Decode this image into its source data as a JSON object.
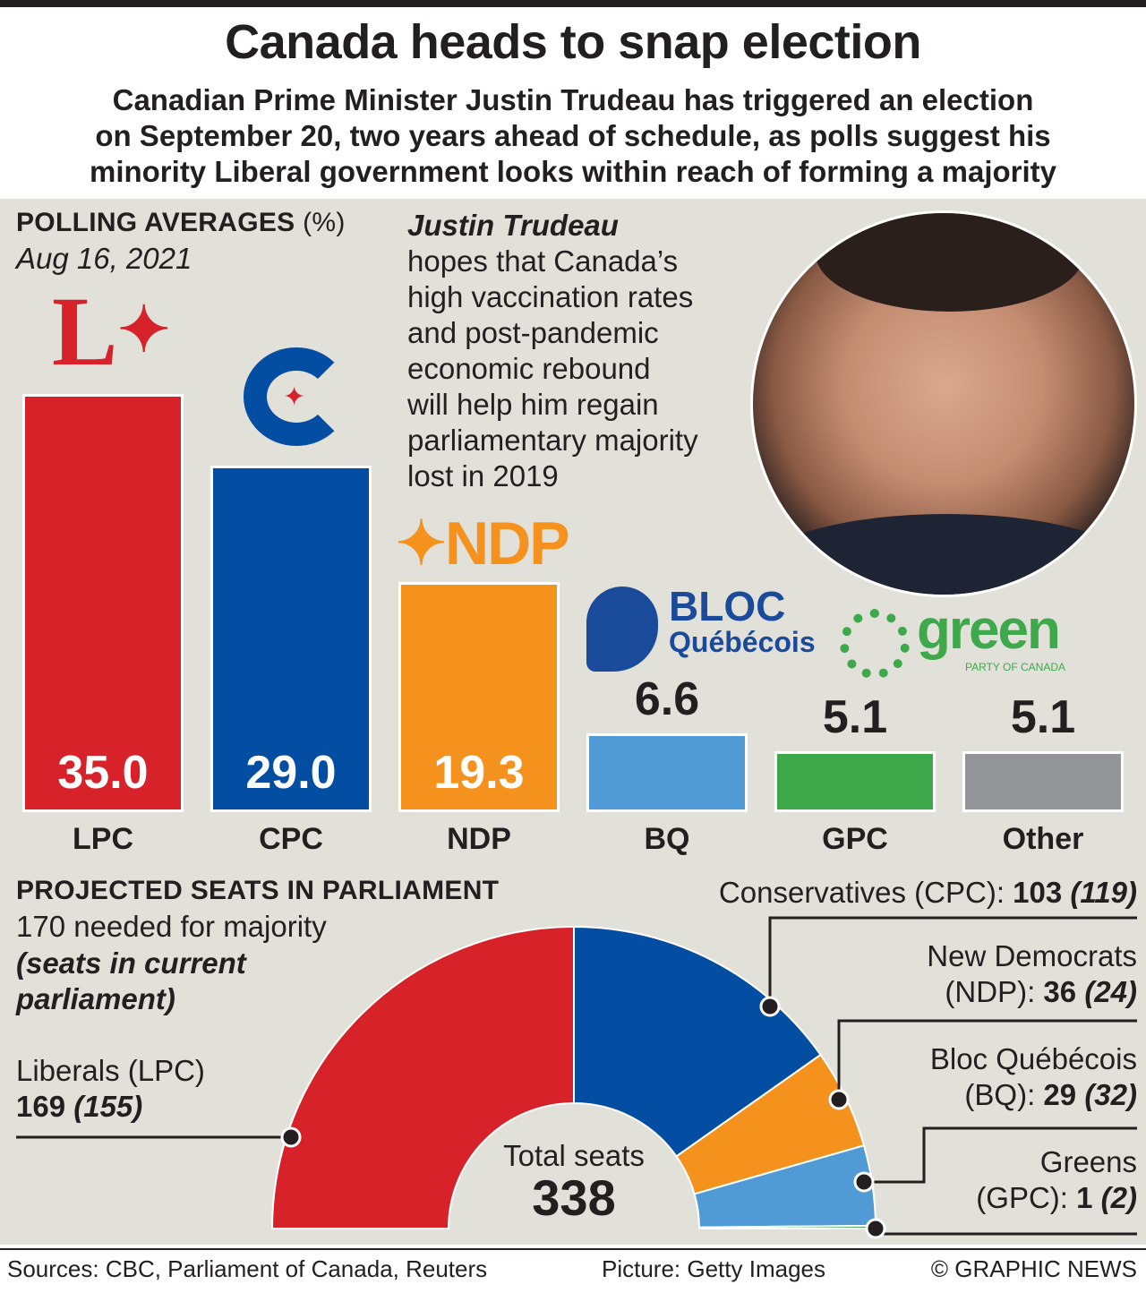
{
  "title": "Canada heads to snap election",
  "subtitle": [
    "Canadian Prime Minister Justin Trudeau has triggered an election",
    "on September 20, two years ahead of schedule, as polls suggest his",
    "minority Liberal government looks within reach of forming a majority"
  ],
  "polling": {
    "heading": "POLLING AVERAGES",
    "unit": "(%)",
    "date": "Aug 16, 2021"
  },
  "trudeau": {
    "name": "Justin Trudeau",
    "lines": [
      "hopes that Canada’s",
      "high vaccination rates",
      "and post-pandemic",
      "economic rebound",
      "will help him regain",
      "parliamentary majority",
      "lost in 2019"
    ]
  },
  "logos": {
    "ndp": "NDP",
    "bloc1": "BLOC",
    "bloc2": "Québécois",
    "green": "green",
    "green_sub": "PARTY OF CANADA"
  },
  "seats": {
    "heading": "PROJECTED SEATS IN PARLIAMENT",
    "needed": "170 needed for majority",
    "note1": "(seats in current",
    "note2": "parliament)",
    "total_label": "Total seats",
    "total": "338",
    "lpc_name": "Liberals (LPC)",
    "lpc_val": "169",
    "lpc_cur": "(155)",
    "cpc_name": "Conservatives (CPC): ",
    "cpc_val": "103",
    "cpc_cur": "(119)",
    "ndp_name1": "New Democrats",
    "ndp_name2": "(NDP): ",
    "ndp_val": "36",
    "ndp_cur": "(24)",
    "bq_name1": "Bloc Québécois",
    "bq_name2": "(BQ): ",
    "bq_val": "29",
    "bq_cur": "(32)",
    "gpc_name1": "Greens",
    "gpc_name2": "(GPC): ",
    "gpc_val": "1",
    "gpc_cur": "(2)"
  },
  "footer": {
    "sources": "Sources: CBC, Parliament of Canada, Reuters",
    "picture": "Picture: Getty Images",
    "credit": "© GRAPHIC NEWS"
  },
  "chart_data": [
    {
      "type": "bar",
      "title": "POLLING AVERAGES (%)",
      "subtitle": "Aug 16, 2021",
      "categories": [
        "LPC",
        "CPC",
        "NDP",
        "BQ",
        "GPC",
        "Other"
      ],
      "values": [
        35.0,
        29.0,
        19.3,
        6.6,
        5.1,
        5.1
      ],
      "labels": [
        "35.0",
        "29.0",
        "19.3",
        "6.6",
        "5.1",
        "5.1"
      ],
      "colors": [
        "#d7222a",
        "#034ea2",
        "#f5921e",
        "#509bd6",
        "#3ea94a",
        "#939598"
      ]
    },
    {
      "type": "pie",
      "title": "PROJECTED SEATS IN PARLIAMENT",
      "categories": [
        "LPC",
        "CPC",
        "NDP",
        "BQ",
        "GPC"
      ],
      "values": [
        169,
        103,
        36,
        29,
        1
      ],
      "current": [
        155,
        119,
        24,
        32,
        2
      ],
      "total": 338,
      "colors": [
        "#d7222a",
        "#034ea2",
        "#f5921e",
        "#509bd6",
        "#3ea94a"
      ]
    }
  ]
}
